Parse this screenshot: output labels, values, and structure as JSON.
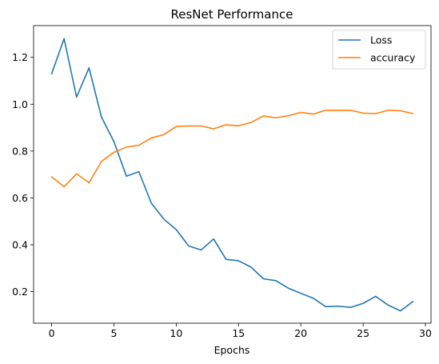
{
  "chart_data": {
    "type": "line",
    "title": "ResNet Performance",
    "xlabel": "Epochs",
    "ylabel": "",
    "xlim": [
      -1.45,
      30.45
    ],
    "ylim": [
      0.0655,
      1.3355
    ],
    "xticks": [
      0,
      5,
      10,
      15,
      20,
      25,
      30
    ],
    "yticks": [
      0.2,
      0.4,
      0.6,
      0.8,
      1.0,
      1.2
    ],
    "ytick_labels": [
      "0.2",
      "0.4",
      "0.6",
      "0.8",
      "1.0",
      "1.2"
    ],
    "grid": false,
    "legend": "top-right",
    "x": [
      0,
      1,
      2,
      3,
      4,
      5,
      6,
      7,
      8,
      9,
      10,
      11,
      12,
      13,
      14,
      15,
      16,
      17,
      18,
      19,
      20,
      21,
      22,
      23,
      24,
      25,
      26,
      27,
      28,
      29
    ],
    "series": [
      {
        "name": "Loss",
        "color": "#1f77b4",
        "values": [
          1.13,
          1.28,
          1.03,
          1.155,
          0.945,
          0.84,
          0.693,
          0.712,
          0.578,
          0.51,
          0.465,
          0.395,
          0.378,
          0.425,
          0.338,
          0.332,
          0.305,
          0.255,
          0.247,
          0.215,
          0.193,
          0.172,
          0.136,
          0.138,
          0.133,
          0.15,
          0.18,
          0.143,
          0.118,
          0.158
        ]
      },
      {
        "name": "accuracy",
        "color": "#ff7f0e",
        "values": [
          0.69,
          0.648,
          0.703,
          0.665,
          0.756,
          0.795,
          0.817,
          0.825,
          0.856,
          0.87,
          0.905,
          0.907,
          0.907,
          0.895,
          0.912,
          0.908,
          0.922,
          0.95,
          0.942,
          0.951,
          0.965,
          0.958,
          0.974,
          0.974,
          0.974,
          0.962,
          0.96,
          0.974,
          0.972,
          0.96
        ]
      }
    ]
  }
}
